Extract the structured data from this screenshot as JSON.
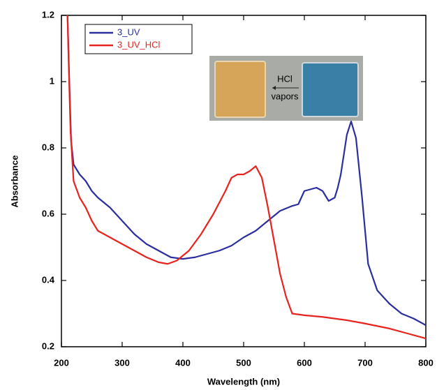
{
  "chart_data": {
    "type": "line",
    "x_label": "Wavelength (nm)",
    "y_label": "Absorbance",
    "xlim": [
      200,
      800
    ],
    "ylim": [
      0.2,
      1.2
    ],
    "xticks": [
      200,
      300,
      400,
      500,
      600,
      700,
      800
    ],
    "yticks": [
      0.2,
      0.4,
      0.6,
      0.8,
      1,
      1.2
    ],
    "legend": "upper left",
    "inset_labels": [
      "HCl",
      "vapors"
    ],
    "series": [
      {
        "name": "3_UV",
        "color": "#2b2f9e",
        "x": [
          210,
          213,
          216,
          220,
          230,
          240,
          250,
          260,
          280,
          300,
          320,
          340,
          360,
          380,
          400,
          420,
          440,
          460,
          480,
          500,
          520,
          540,
          560,
          580,
          590,
          600,
          620,
          630,
          640,
          650,
          655,
          660,
          670,
          677,
          685,
          695,
          705,
          720,
          740,
          760,
          780,
          800
        ],
        "values": [
          1.2,
          1.0,
          0.82,
          0.75,
          0.72,
          0.7,
          0.67,
          0.65,
          0.62,
          0.58,
          0.54,
          0.51,
          0.49,
          0.47,
          0.465,
          0.47,
          0.48,
          0.49,
          0.505,
          0.53,
          0.55,
          0.58,
          0.61,
          0.625,
          0.63,
          0.67,
          0.68,
          0.67,
          0.64,
          0.65,
          0.68,
          0.72,
          0.84,
          0.88,
          0.83,
          0.65,
          0.45,
          0.37,
          0.33,
          0.3,
          0.285,
          0.265
        ]
      },
      {
        "name": "3_UV_HCl",
        "color": "#e8231e",
        "x": [
          210,
          212,
          215,
          220,
          230,
          240,
          250,
          260,
          280,
          300,
          320,
          340,
          360,
          375,
          390,
          410,
          430,
          450,
          470,
          480,
          490,
          500,
          510,
          520,
          530,
          540,
          550,
          560,
          570,
          580,
          600,
          630,
          650,
          670,
          700,
          740,
          770,
          800
        ],
        "values": [
          1.2,
          1.05,
          0.85,
          0.7,
          0.65,
          0.62,
          0.58,
          0.55,
          0.53,
          0.51,
          0.49,
          0.47,
          0.455,
          0.45,
          0.46,
          0.49,
          0.54,
          0.6,
          0.67,
          0.71,
          0.72,
          0.72,
          0.73,
          0.745,
          0.71,
          0.62,
          0.52,
          0.42,
          0.35,
          0.3,
          0.295,
          0.29,
          0.285,
          0.28,
          0.27,
          0.255,
          0.24,
          0.225
        ]
      }
    ]
  }
}
